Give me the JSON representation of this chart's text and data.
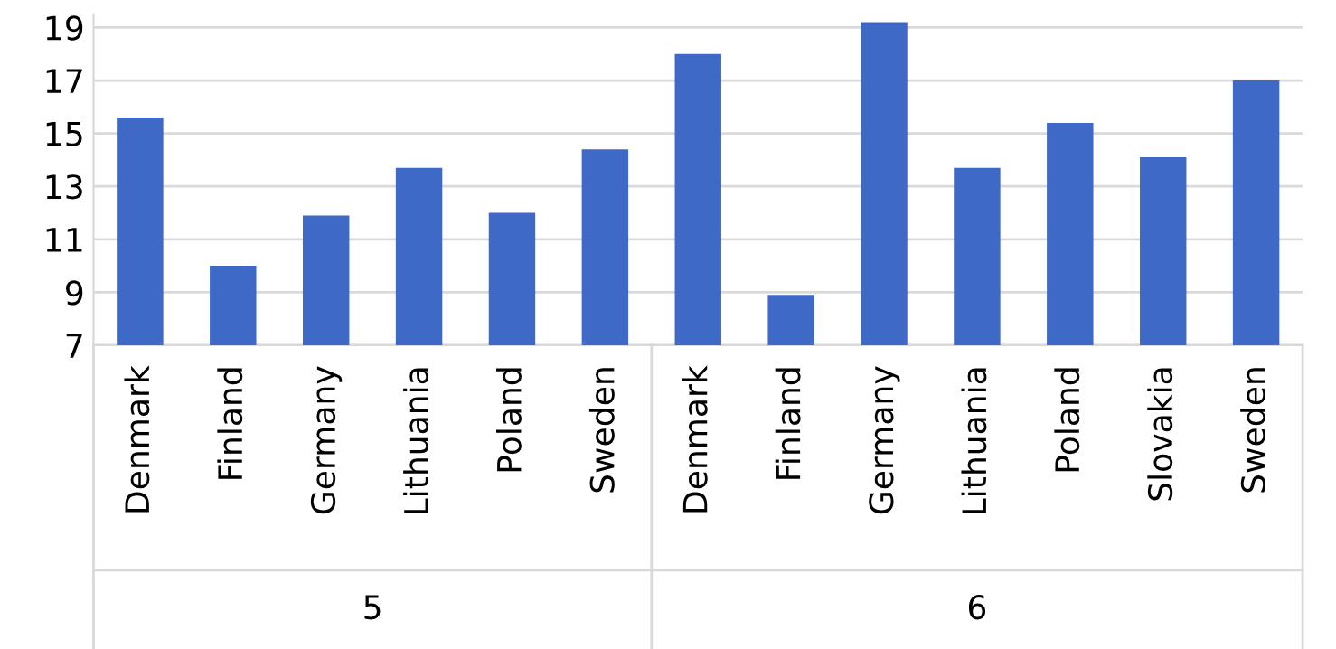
{
  "chart_data": {
    "type": "bar",
    "categories": [
      "Denmark",
      "Finland",
      "Germany",
      "Lithuania",
      "Poland",
      "Sweden",
      "Denmark",
      "Finland",
      "Germany",
      "Lithuania",
      "Poland",
      "Slovakia",
      "Sweden"
    ],
    "values": [
      15.6,
      10.0,
      11.9,
      13.7,
      12.0,
      14.4,
      18.0,
      8.9,
      19.2,
      13.7,
      15.4,
      14.1,
      17.0
    ],
    "color": "#3f69c6",
    "ylim": [
      7,
      19.5
    ],
    "yticks": [
      7,
      9,
      11,
      13,
      15,
      17,
      19
    ],
    "grid": "y",
    "annotations": [
      "5",
      "6"
    ]
  }
}
